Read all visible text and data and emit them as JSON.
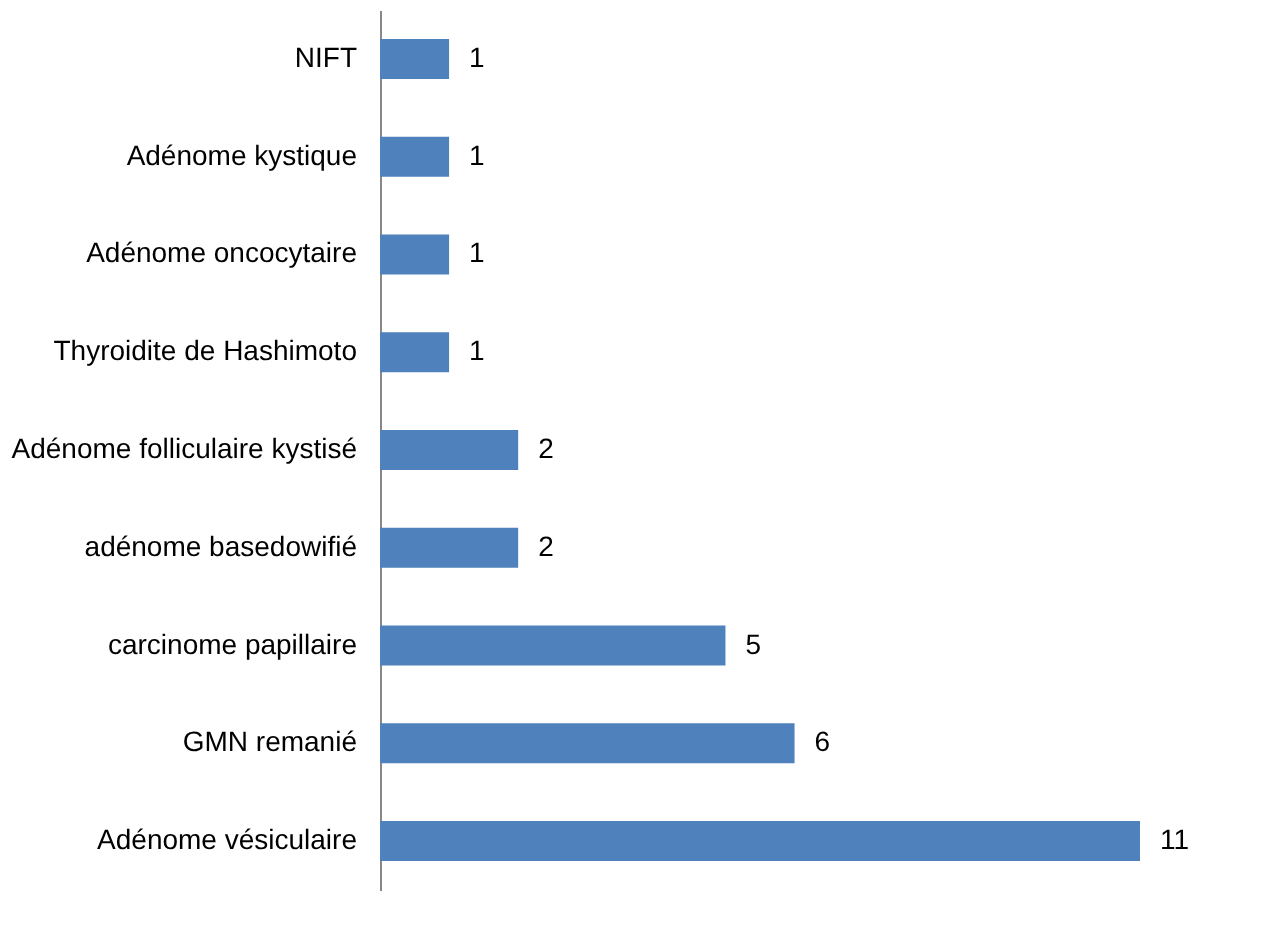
{
  "chart_data": {
    "type": "bar",
    "orientation": "horizontal",
    "categories": [
      "NIFT",
      "Adénome kystique",
      "Adénome oncocytaire",
      "Thyroidite de Hashimoto",
      "Adénome folliculaire kystisé",
      "adénome basedowifié",
      "carcinome papillaire",
      "GMN remanié",
      "Adénome vésiculaire"
    ],
    "values": [
      1,
      1,
      1,
      1,
      2,
      2,
      5,
      6,
      11
    ],
    "color": "#4f81bd",
    "data_labels": true
  }
}
